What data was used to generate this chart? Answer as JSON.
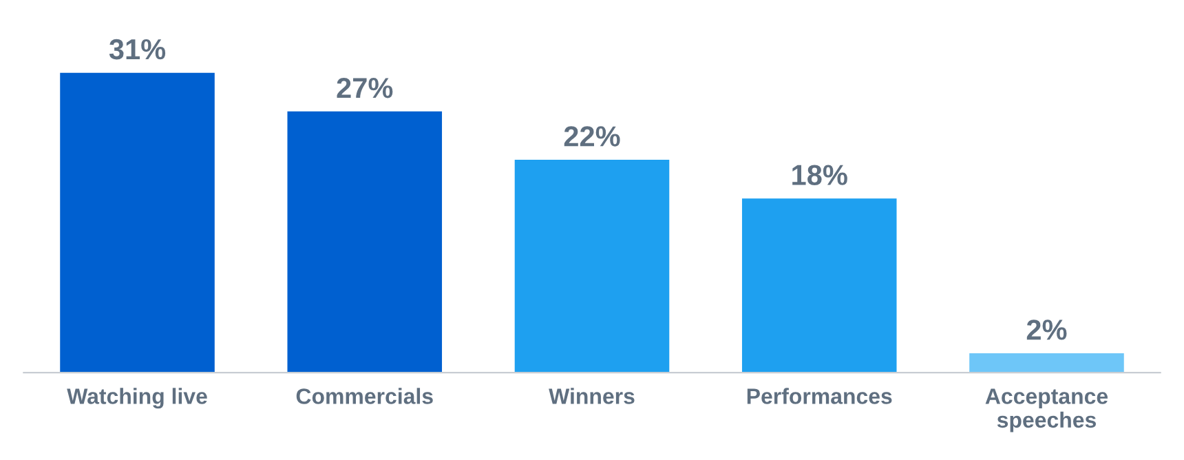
{
  "chart_data": {
    "type": "bar",
    "categories": [
      "Watching live",
      "Commercials",
      "Winners",
      "Performances",
      "Acceptance\nspeeches"
    ],
    "values": [
      31,
      27,
      22,
      18,
      2
    ],
    "colors": [
      "#0060d0",
      "#0060d0",
      "#1ea0f0",
      "#1ea0f0",
      "#6ec6f8"
    ],
    "value_labels": [
      "31%",
      "27%",
      "22%",
      "18%",
      "2%"
    ],
    "legend": false
  }
}
